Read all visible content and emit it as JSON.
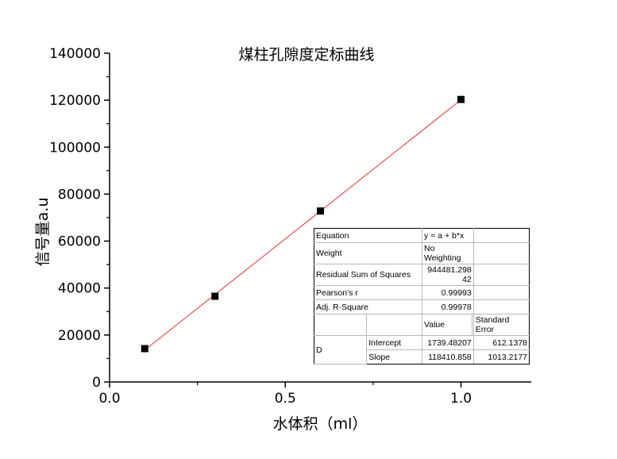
{
  "chart_data": {
    "type": "scatter",
    "title": "煤柱孔隙度定标曲线",
    "xlabel": "水体积（ml）",
    "ylabel": "信号量a.u",
    "xlim": [
      0.0,
      1.2
    ],
    "ylim": [
      0,
      140000
    ],
    "x_ticks": [
      "0.0",
      "0.5",
      "1.0"
    ],
    "x_tick_values": [
      0.0,
      0.5,
      1.0
    ],
    "y_ticks": [
      "0",
      "20000",
      "40000",
      "60000",
      "80000",
      "100000",
      "120000",
      "140000"
    ],
    "y_tick_values": [
      0,
      20000,
      40000,
      60000,
      80000,
      100000,
      120000,
      140000
    ],
    "grid": false,
    "series": [
      {
        "type": "scatter",
        "marker": "square",
        "color": "#000000",
        "x": [
          0.1,
          0.3,
          0.6,
          1.0
        ],
        "y": [
          14200,
          36500,
          72800,
          120300
        ]
      },
      {
        "type": "line",
        "color": "#e8302c",
        "intercept": 1739.48207,
        "slope": 118410.858,
        "x": [
          0.1,
          1.0
        ]
      }
    ]
  },
  "fit_table": {
    "rows": [
      {
        "label": "Equation",
        "value": "y = a + b*x"
      },
      {
        "label": "Weight",
        "value": "No Weighting"
      },
      {
        "label": "Residual Sum of Squares",
        "value": "944481.29842"
      },
      {
        "label": "Pearson's r",
        "value": "0.99993"
      },
      {
        "label": "Adj. R-Square",
        "value": "0.99978"
      }
    ],
    "header": {
      "value": "Value",
      "error": "Standard Error"
    },
    "group": "D",
    "params": [
      {
        "name": "Intercept",
        "value": "1739.48207",
        "error": "612.1378"
      },
      {
        "name": "Slope",
        "value": "118410.858",
        "error": "1013.2177"
      }
    ]
  }
}
